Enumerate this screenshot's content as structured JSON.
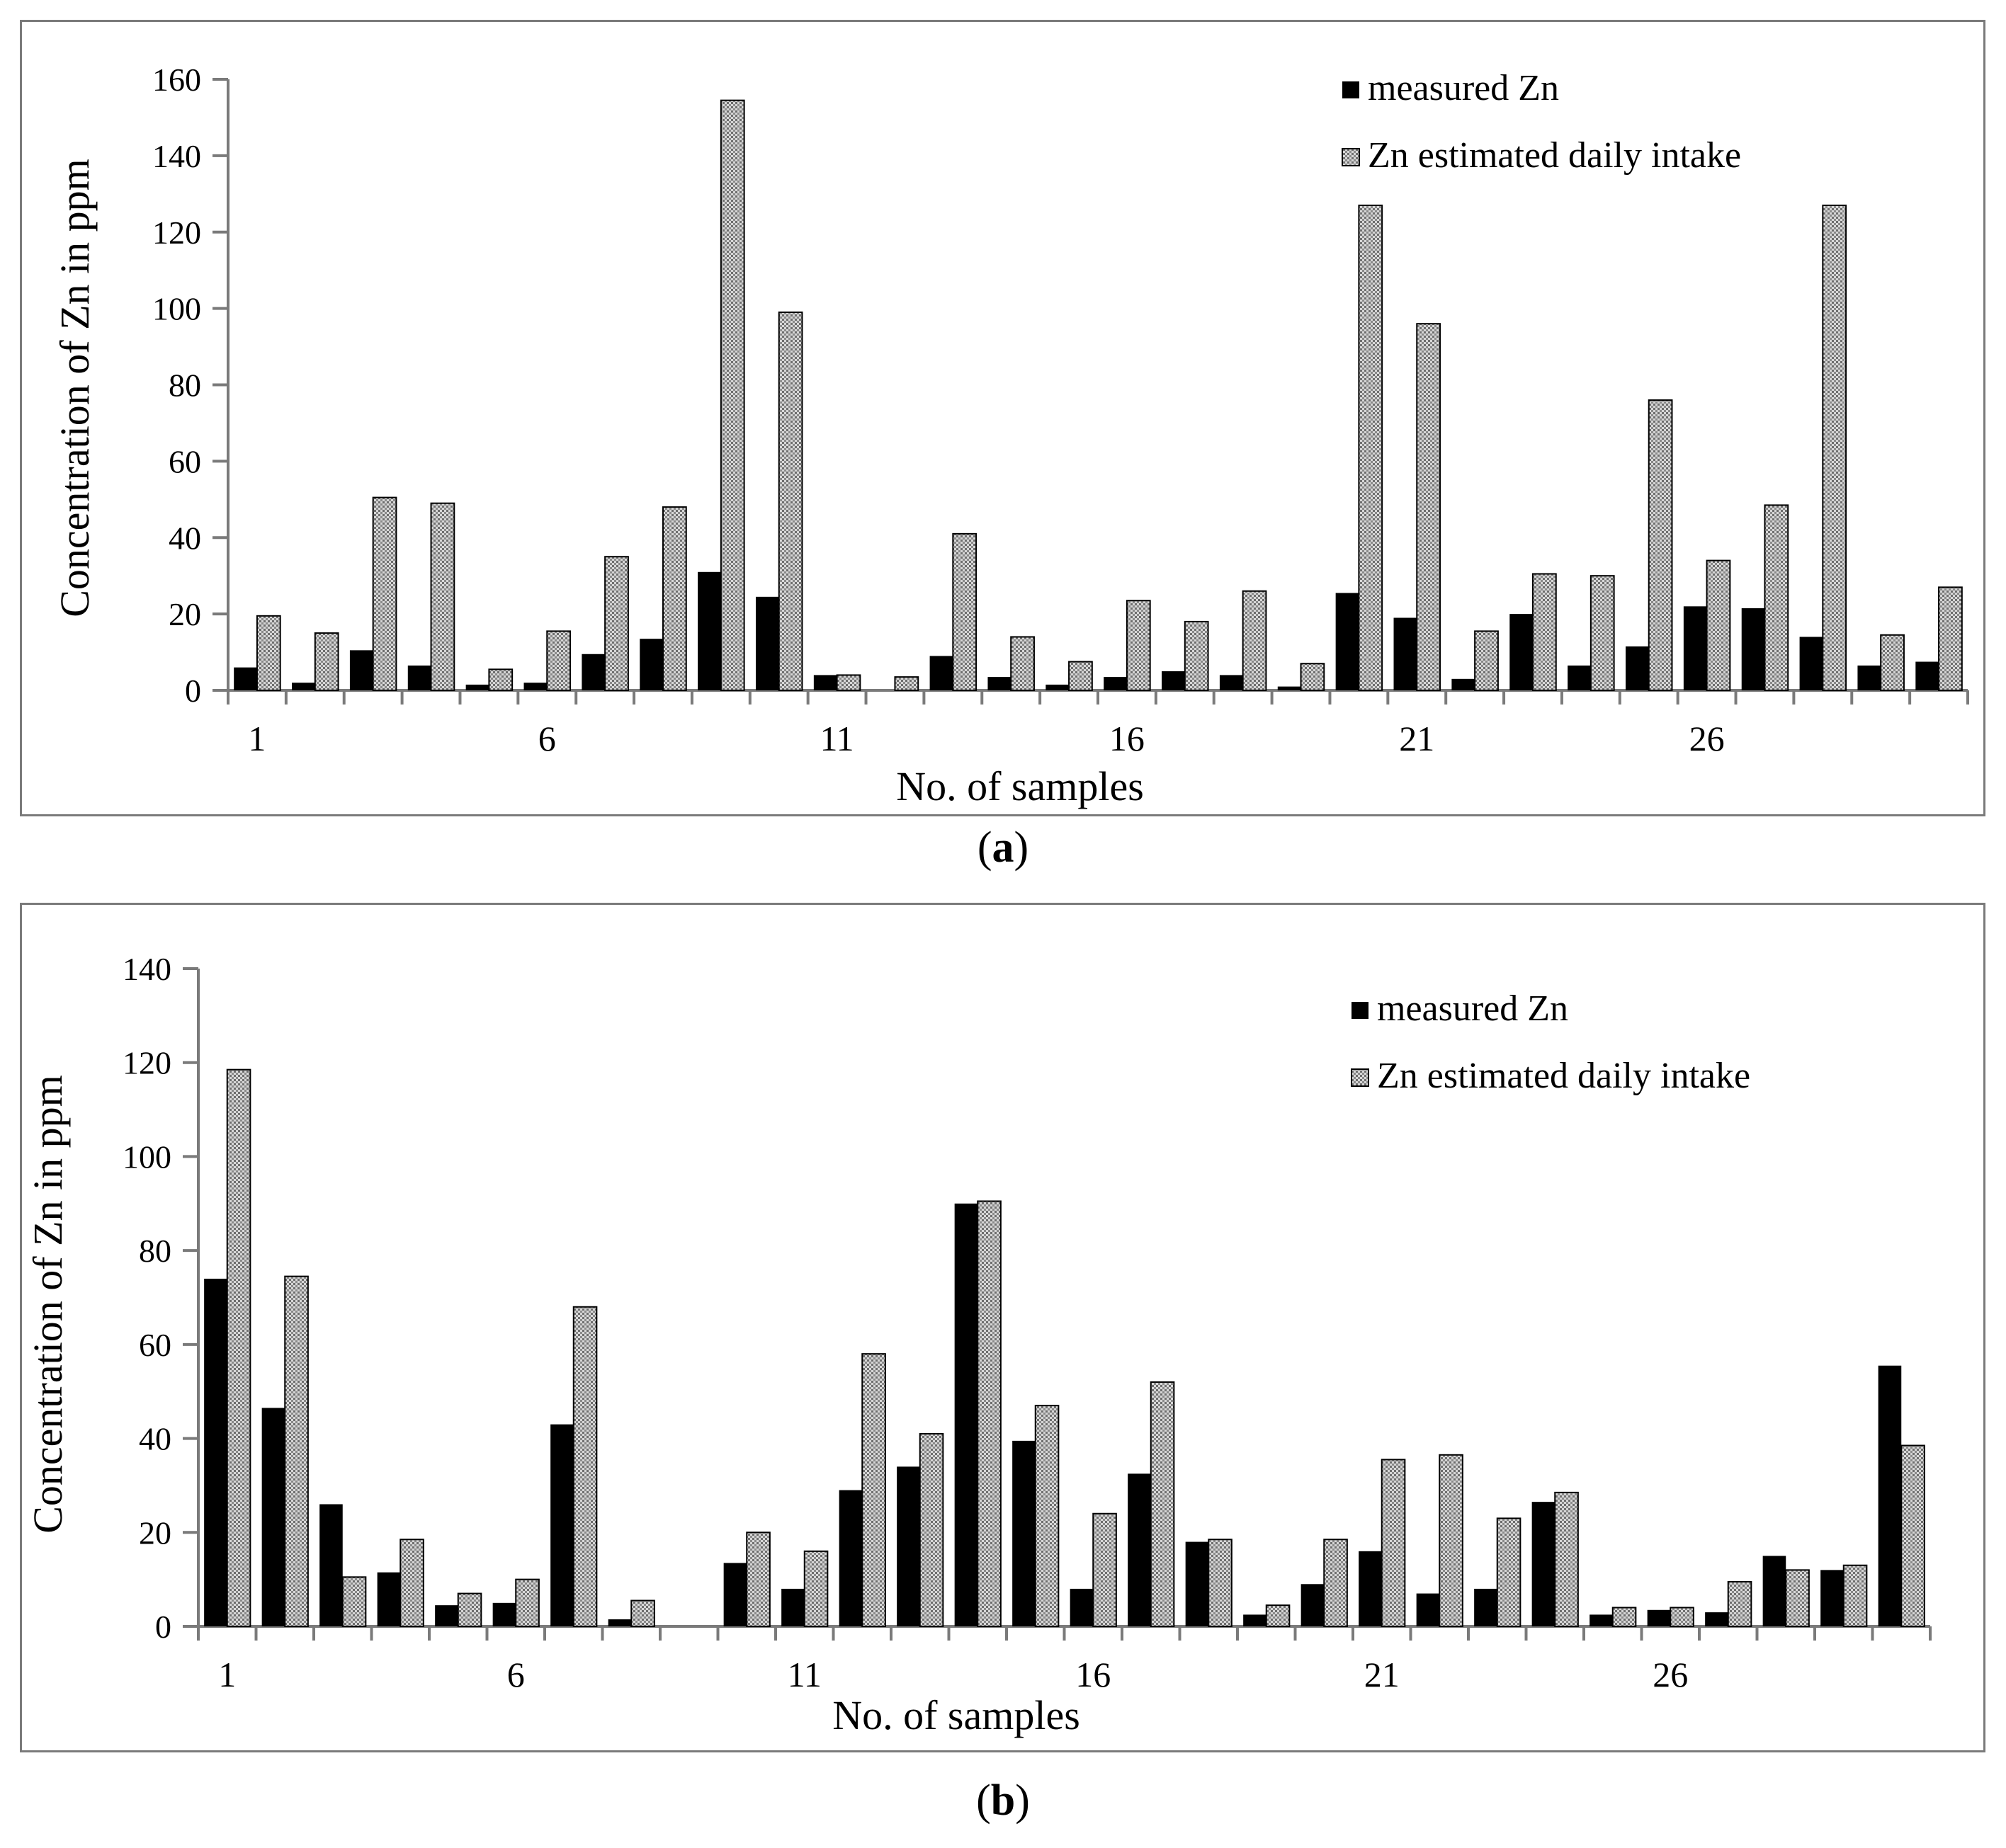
{
  "chart_data": [
    {
      "id": "a",
      "type": "bar",
      "panel_label": "a",
      "xlabel": "No. of samples",
      "ylabel": "Concentration of Zn in ppm",
      "ylim": [
        0,
        160
      ],
      "yticks": [
        0,
        20,
        40,
        60,
        80,
        100,
        120,
        140,
        160
      ],
      "xtick_labels": [
        {
          "index": 0,
          "label": "1"
        },
        {
          "index": 5,
          "label": "6"
        },
        {
          "index": 10,
          "label": "11"
        },
        {
          "index": 15,
          "label": "16"
        },
        {
          "index": 20,
          "label": "21"
        },
        {
          "index": 25,
          "label": "26"
        }
      ],
      "categories": [
        "1",
        "2",
        "3",
        "4",
        "5",
        "6",
        "7",
        "8",
        "9",
        "10",
        "11",
        "12",
        "13",
        "14",
        "15",
        "16",
        "17",
        "18",
        "19",
        "20",
        "21",
        "22",
        "23",
        "24",
        "25",
        "26",
        "27",
        "28",
        "29",
        "30"
      ],
      "series": [
        {
          "name": "measured Zn",
          "color": "#000000",
          "values": [
            6,
            2,
            10.5,
            6.5,
            1.5,
            2,
            9.5,
            13.5,
            31,
            24.5,
            4,
            0,
            9,
            3.5,
            1.5,
            3.5,
            5,
            4,
            1,
            25.5,
            19,
            3,
            20,
            6.5,
            11.5,
            22,
            21.5,
            14,
            6.5,
            7.5
          ]
        },
        {
          "name": "Zn estimated daily intake",
          "color": "#b8b8b8",
          "values": [
            19.5,
            15,
            50.5,
            49,
            5.5,
            15.5,
            35,
            48,
            154.5,
            99,
            4,
            3.5,
            41,
            14,
            7.5,
            23.5,
            18,
            26,
            7,
            127,
            96,
            15.5,
            30.5,
            30,
            76,
            34,
            48.5,
            127,
            14.5,
            27
          ]
        }
      ],
      "legend": {
        "position": "top-right",
        "entries": [
          "measured Zn",
          "Zn estimated daily intake"
        ]
      }
    },
    {
      "id": "b",
      "type": "bar",
      "panel_label": "b",
      "xlabel": "No. of samples",
      "ylabel": "Concentration of Zn in ppm",
      "ylim": [
        0,
        140
      ],
      "yticks": [
        0,
        20,
        40,
        60,
        80,
        100,
        120,
        140
      ],
      "xtick_labels": [
        {
          "index": 0,
          "label": "1"
        },
        {
          "index": 5,
          "label": "6"
        },
        {
          "index": 10,
          "label": "11"
        },
        {
          "index": 15,
          "label": "16"
        },
        {
          "index": 20,
          "label": "21"
        },
        {
          "index": 25,
          "label": "26"
        }
      ],
      "categories": [
        "1",
        "2",
        "3",
        "4",
        "5",
        "6",
        "7",
        "8",
        "9",
        "10",
        "11",
        "12",
        "13",
        "14",
        "15",
        "16",
        "17",
        "18",
        "19",
        "20",
        "21",
        "22",
        "23",
        "24",
        "25",
        "26",
        "27",
        "28",
        "29",
        "30"
      ],
      "series": [
        {
          "name": "measured Zn",
          "color": "#000000",
          "values": [
            74,
            46.5,
            26,
            11.5,
            4.5,
            5,
            43,
            1.5,
            0,
            13.5,
            8,
            29,
            34,
            90,
            39.5,
            8,
            32.5,
            18,
            2.5,
            9,
            16,
            7,
            8,
            26.5,
            2.5,
            3.5,
            3,
            15,
            12,
            55.5
          ]
        },
        {
          "name": "Zn estimated daily intake",
          "color": "#b8b8b8",
          "values": [
            118.5,
            74.5,
            10.5,
            18.5,
            7,
            10,
            68,
            5.5,
            0,
            20,
            16,
            58,
            41,
            90.5,
            47,
            24,
            52,
            18.5,
            4.5,
            18.5,
            35.5,
            36.5,
            23,
            28.5,
            4,
            4,
            9.5,
            12,
            13,
            38.5
          ]
        }
      ],
      "legend": {
        "position": "top-right",
        "entries": [
          "measured Zn",
          "Zn estimated daily intake"
        ]
      }
    }
  ]
}
